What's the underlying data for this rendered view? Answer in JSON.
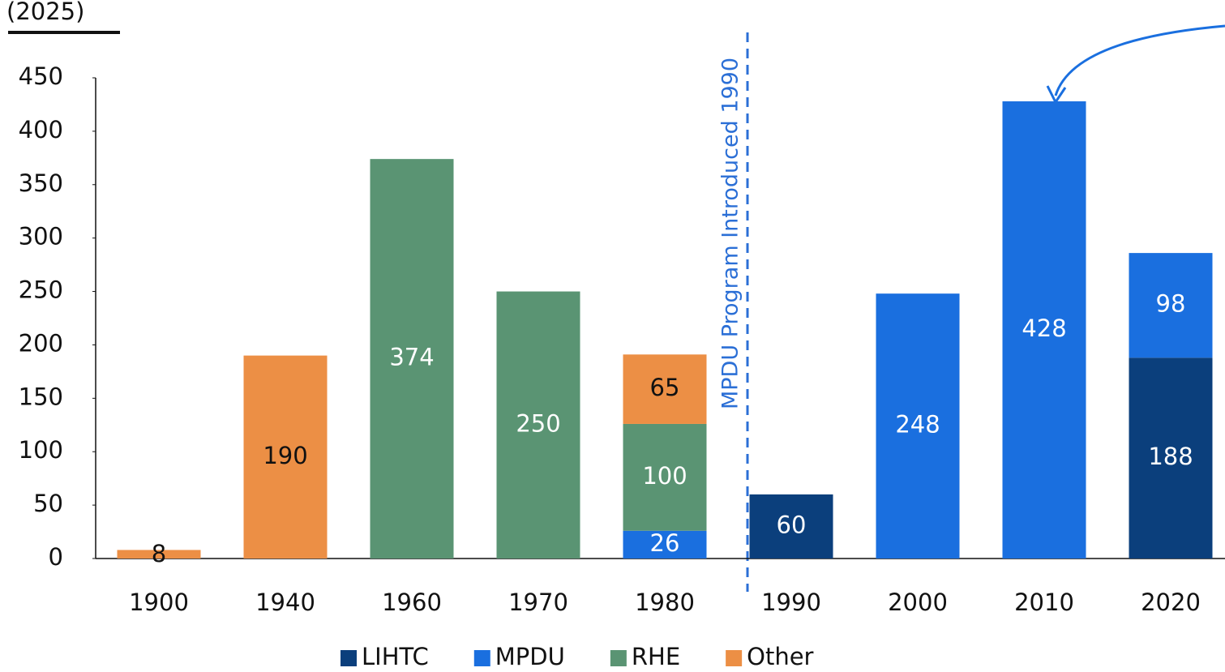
{
  "chart_data": {
    "type": "stacked_bar",
    "title": "(2025)",
    "annotation": "MPDU Program Introduced 1990",
    "categories": [
      "1900",
      "1940",
      "1960",
      "1970",
      "1980",
      "1990",
      "2000",
      "2010",
      "2020"
    ],
    "series": [
      {
        "name": "LIHTC",
        "color": "#0b3f7c",
        "label_color": "#ffffff",
        "values": [
          null,
          null,
          null,
          null,
          null,
          60,
          null,
          null,
          188
        ]
      },
      {
        "name": "MPDU",
        "color": "#1a6fdf",
        "label_color": "#ffffff",
        "values": [
          null,
          null,
          null,
          null,
          26,
          null,
          248,
          428,
          98
        ]
      },
      {
        "name": "RHE",
        "color": "#5a9473",
        "label_color": "#ffffff",
        "values": [
          null,
          null,
          374,
          250,
          100,
          null,
          null,
          null,
          null
        ]
      },
      {
        "name": "Other",
        "color": "#ec8f45",
        "label_color": "#111111",
        "values": [
          8,
          190,
          null,
          null,
          65,
          null,
          null,
          null,
          null
        ]
      }
    ],
    "ylim": [
      0,
      450
    ],
    "yticks": [
      0,
      50,
      100,
      150,
      200,
      250,
      300,
      350,
      400,
      450
    ]
  }
}
